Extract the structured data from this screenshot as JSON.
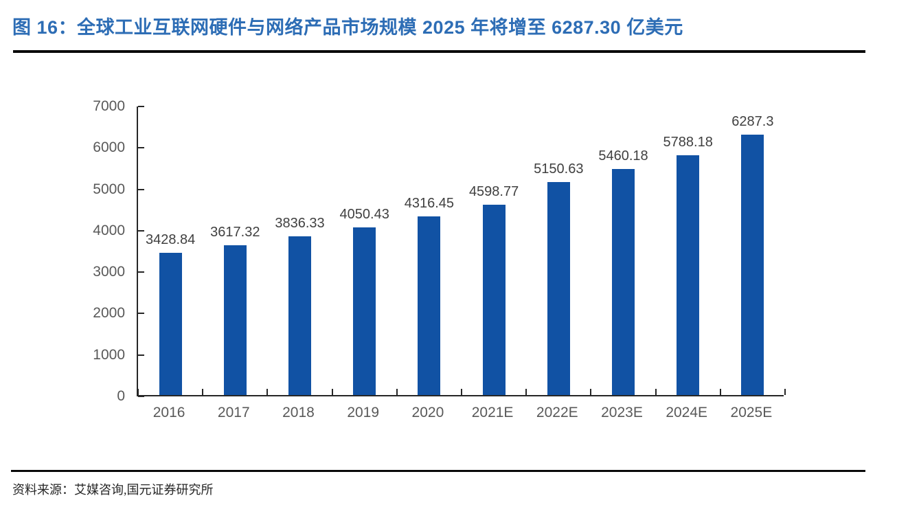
{
  "header": {
    "title": "图 16：全球工业互联网硬件与网络产品市场规模 2025 年将增至 6287.30 亿美元"
  },
  "footer": {
    "source_label": "资料来源：",
    "source_text": "艾媒咨询,国元证券研究所"
  },
  "colors": {
    "bar": "#1152A4",
    "title": "#2D6DB5",
    "axis_line": "#262626",
    "axis_label": "#595959",
    "data_label": "#404040"
  },
  "chart_data": {
    "type": "bar",
    "categories": [
      "2016",
      "2017",
      "2018",
      "2019",
      "2020",
      "2021E",
      "2022E",
      "2023E",
      "2024E",
      "2025E"
    ],
    "values": [
      3428.84,
      3617.32,
      3836.33,
      4050.43,
      4316.45,
      4598.77,
      5150.63,
      5460.18,
      5788.18,
      6287.3
    ],
    "data_labels": [
      "3428.84",
      "3617.32",
      "3836.33",
      "4050.43",
      "4316.45",
      "4598.77",
      "5150.63",
      "5460.18",
      "5788.18",
      "6287.3"
    ],
    "title": "",
    "xlabel": "",
    "ylabel": "",
    "ylim": [
      0,
      7000
    ],
    "y_ticks": [
      0,
      1000,
      2000,
      3000,
      4000,
      5000,
      6000,
      7000
    ],
    "grid": false,
    "legend": false,
    "bar_color": "#1152A4"
  }
}
